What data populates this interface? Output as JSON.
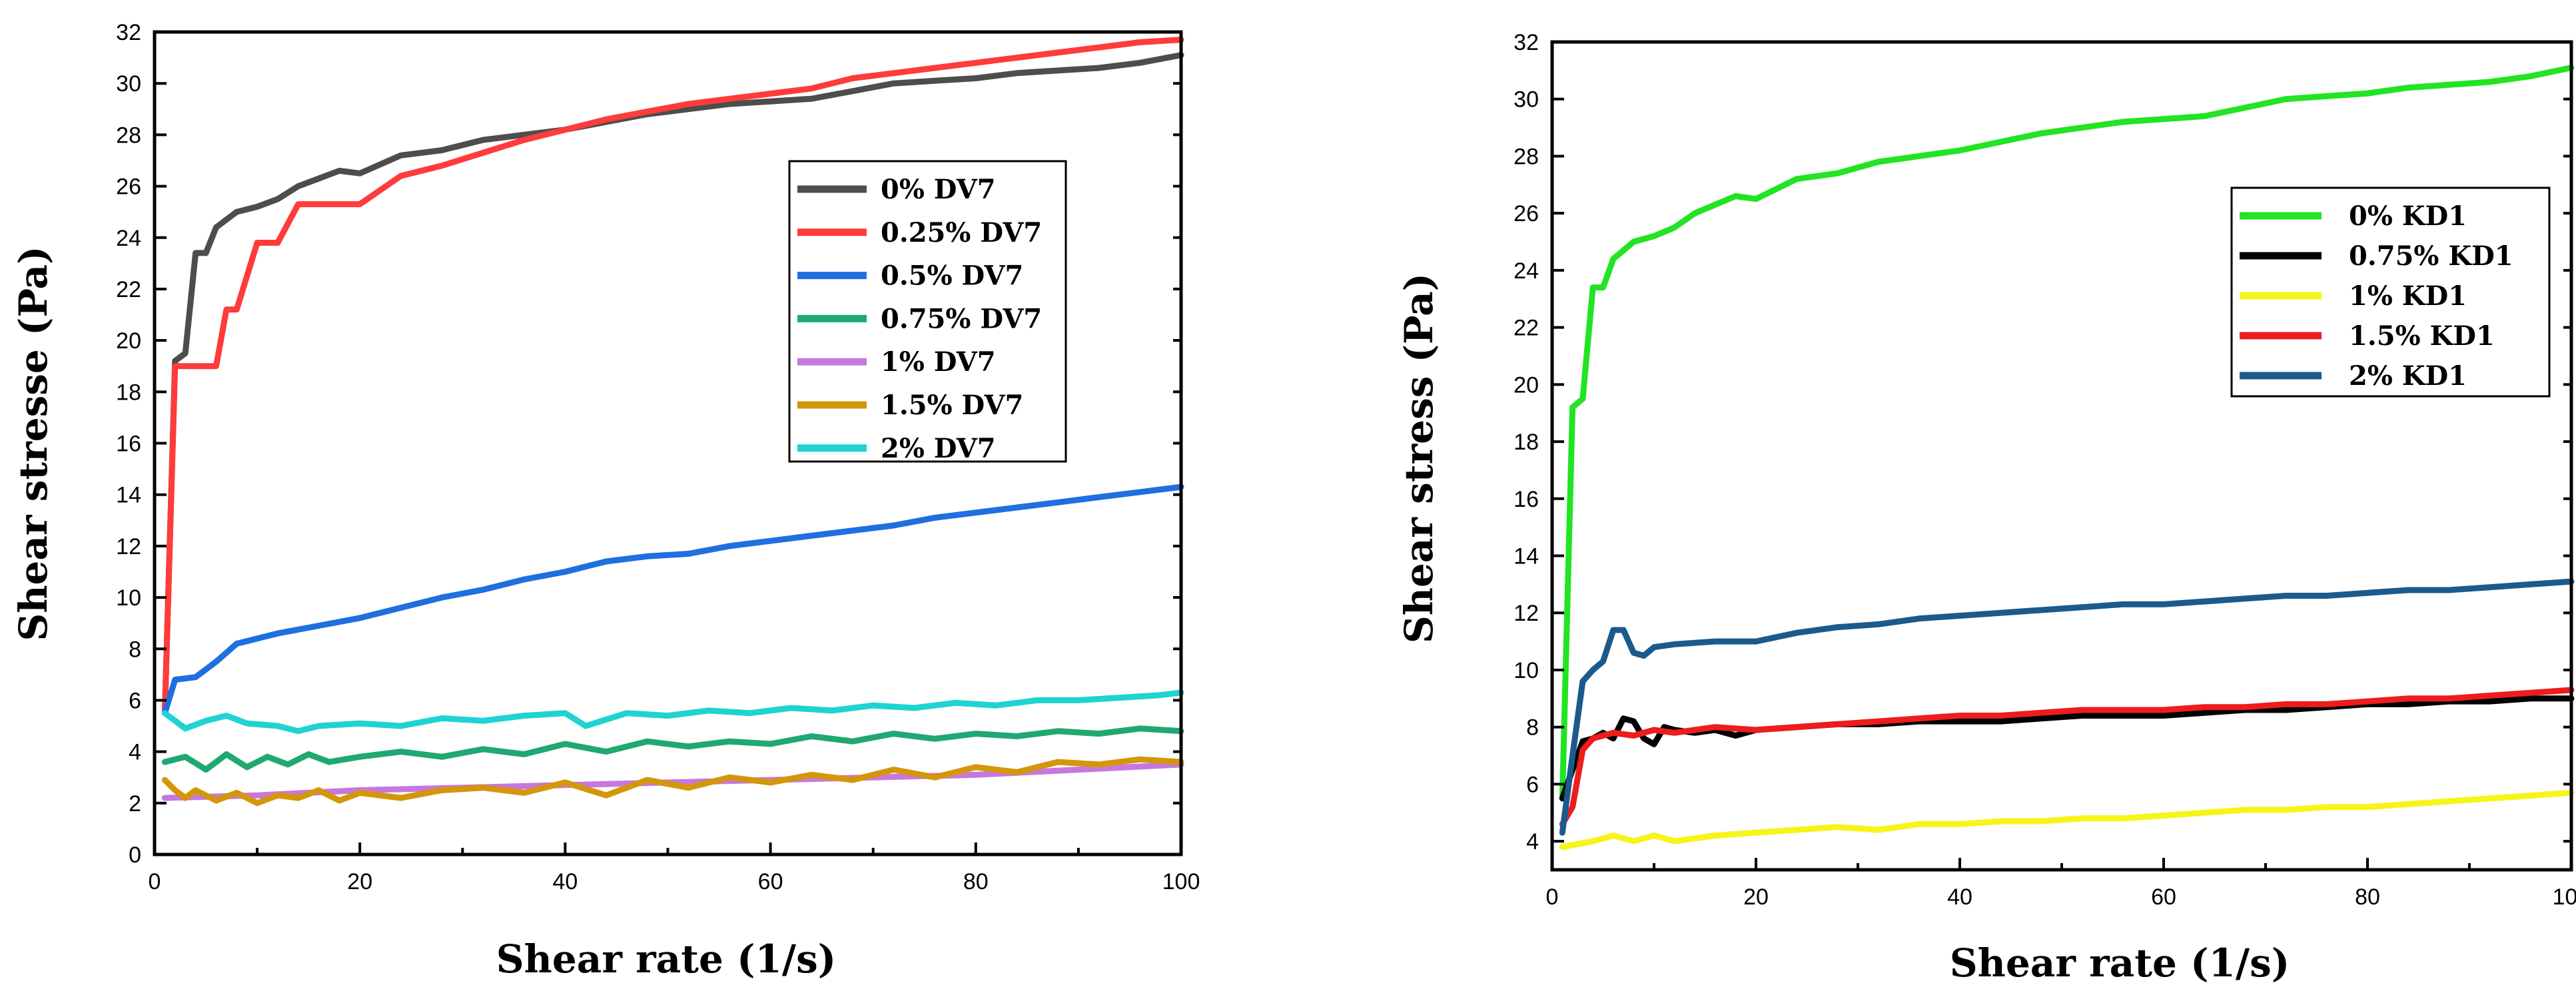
{
  "chart_data": [
    {
      "type": "line",
      "xlabel": "Shear rate (1/s)",
      "ylabel": "Shear stresse (Pa)",
      "xlim": [
        0,
        100
      ],
      "ylim": [
        0,
        32
      ],
      "xticks": [
        0,
        20,
        40,
        60,
        80,
        100
      ],
      "yticks": [
        0,
        2,
        4,
        6,
        8,
        10,
        12,
        14,
        16,
        18,
        20,
        22,
        24,
        26,
        28,
        30,
        32
      ],
      "legend_position": "center-right",
      "series": [
        {
          "name": "0% DV7",
          "color": "#4d4d4d",
          "x": [
            1,
            2,
            3,
            4,
            5,
            6,
            8,
            10,
            12,
            14,
            16,
            18,
            20,
            24,
            28,
            32,
            36,
            40,
            44,
            48,
            52,
            56,
            60,
            64,
            68,
            72,
            76,
            80,
            84,
            88,
            92,
            96,
            100
          ],
          "y": [
            5.5,
            19.2,
            19.5,
            23.4,
            23.4,
            24.4,
            25,
            25.2,
            25.5,
            26,
            26.3,
            26.6,
            26.5,
            27.2,
            27.4,
            27.8,
            28,
            28.2,
            28.5,
            28.8,
            29,
            29.2,
            29.3,
            29.4,
            29.7,
            30,
            30.1,
            30.2,
            30.4,
            30.5,
            30.6,
            30.8,
            31.1
          ]
        },
        {
          "name": "0.25% DV7",
          "color": "#ff3b3b",
          "x": [
            1,
            2,
            3,
            4,
            5,
            6,
            7,
            8,
            9,
            10,
            12,
            14,
            16,
            18,
            20,
            24,
            28,
            32,
            36,
            40,
            44,
            48,
            52,
            56,
            60,
            64,
            68,
            72,
            76,
            80,
            84,
            88,
            92,
            96,
            100
          ],
          "y": [
            5.5,
            19,
            19,
            19,
            19,
            19,
            21.2,
            21.2,
            22.5,
            23.8,
            23.8,
            25.3,
            25.3,
            25.3,
            25.3,
            26.4,
            26.8,
            27.3,
            27.8,
            28.2,
            28.6,
            28.9,
            29.2,
            29.4,
            29.6,
            29.8,
            30.2,
            30.4,
            30.6,
            30.8,
            31,
            31.2,
            31.4,
            31.6,
            31.7
          ]
        },
        {
          "name": "0.5% DV7",
          "color": "#1f6fe0",
          "x": [
            1,
            2,
            4,
            6,
            8,
            10,
            12,
            16,
            20,
            24,
            28,
            32,
            36,
            40,
            44,
            48,
            52,
            56,
            60,
            64,
            68,
            72,
            76,
            80,
            84,
            88,
            92,
            96,
            100
          ],
          "y": [
            5.5,
            6.8,
            6.9,
            7.5,
            8.2,
            8.4,
            8.6,
            8.9,
            9.2,
            9.6,
            10,
            10.3,
            10.7,
            11,
            11.4,
            11.6,
            11.7,
            12,
            12.2,
            12.4,
            12.6,
            12.8,
            13.1,
            13.3,
            13.5,
            13.7,
            13.9,
            14.1,
            14.3
          ]
        },
        {
          "name": "0.75% DV7",
          "color": "#1fa872",
          "x": [
            1,
            3,
            5,
            7,
            9,
            11,
            13,
            15,
            17,
            20,
            24,
            28,
            32,
            36,
            40,
            44,
            48,
            52,
            56,
            60,
            64,
            68,
            72,
            76,
            80,
            84,
            88,
            92,
            96,
            100
          ],
          "y": [
            3.6,
            3.8,
            3.3,
            3.9,
            3.4,
            3.8,
            3.5,
            3.9,
            3.6,
            3.8,
            4.0,
            3.8,
            4.1,
            3.9,
            4.3,
            4.0,
            4.4,
            4.2,
            4.4,
            4.3,
            4.6,
            4.4,
            4.7,
            4.5,
            4.7,
            4.6,
            4.8,
            4.7,
            4.9,
            4.8
          ]
        },
        {
          "name": "1% DV7",
          "color": "#c678dd",
          "x": [
            1,
            10,
            20,
            30,
            40,
            50,
            60,
            70,
            80,
            90,
            100
          ],
          "y": [
            2.2,
            2.3,
            2.5,
            2.6,
            2.7,
            2.8,
            2.9,
            3.0,
            3.1,
            3.3,
            3.5
          ]
        },
        {
          "name": "1.5% DV7",
          "color": "#d4960a",
          "x": [
            1,
            2,
            3,
            4,
            6,
            8,
            10,
            12,
            14,
            16,
            18,
            20,
            24,
            28,
            32,
            36,
            40,
            44,
            48,
            52,
            56,
            60,
            64,
            68,
            72,
            76,
            80,
            84,
            88,
            92,
            96,
            100
          ],
          "y": [
            2.9,
            2.5,
            2.2,
            2.5,
            2.1,
            2.4,
            2.0,
            2.3,
            2.2,
            2.5,
            2.1,
            2.4,
            2.2,
            2.5,
            2.6,
            2.4,
            2.8,
            2.3,
            2.9,
            2.6,
            3.0,
            2.8,
            3.1,
            2.9,
            3.3,
            3.0,
            3.4,
            3.2,
            3.6,
            3.5,
            3.7,
            3.6
          ]
        },
        {
          "name": "2% DV7",
          "color": "#1fd3d3",
          "x": [
            1,
            3,
            5,
            7,
            9,
            12,
            14,
            16,
            20,
            24,
            28,
            32,
            36,
            40,
            42,
            46,
            50,
            54,
            58,
            62,
            66,
            70,
            74,
            78,
            82,
            86,
            90,
            94,
            98,
            100
          ],
          "y": [
            5.5,
            4.9,
            5.2,
            5.4,
            5.1,
            5.0,
            4.8,
            5.0,
            5.1,
            5.0,
            5.3,
            5.2,
            5.4,
            5.5,
            5.0,
            5.5,
            5.4,
            5.6,
            5.5,
            5.7,
            5.6,
            5.8,
            5.7,
            5.9,
            5.8,
            6.0,
            6.0,
            6.1,
            6.2,
            6.3
          ]
        }
      ]
    },
    {
      "type": "line",
      "xlabel": "Shear rate (1/s)",
      "ylabel": "Shear stress (Pa)",
      "xlim": [
        0,
        100
      ],
      "ylim": [
        3,
        32
      ],
      "xticks": [
        0,
        20,
        40,
        60,
        80,
        100
      ],
      "yticks": [
        4,
        6,
        8,
        10,
        12,
        14,
        16,
        18,
        20,
        22,
        24,
        26,
        28,
        30,
        32
      ],
      "legend_position": "top-right",
      "series": [
        {
          "name": "0% KD1",
          "color": "#22e422",
          "x": [
            1,
            2,
            3,
            4,
            5,
            6,
            8,
            10,
            12,
            14,
            16,
            18,
            20,
            24,
            28,
            32,
            36,
            40,
            44,
            48,
            52,
            56,
            60,
            64,
            68,
            72,
            76,
            80,
            84,
            88,
            92,
            96,
            100
          ],
          "y": [
            5.5,
            19.2,
            19.5,
            23.4,
            23.4,
            24.4,
            25,
            25.2,
            25.5,
            26,
            26.3,
            26.6,
            26.5,
            27.2,
            27.4,
            27.8,
            28,
            28.2,
            28.5,
            28.8,
            29,
            29.2,
            29.3,
            29.4,
            29.7,
            30,
            30.1,
            30.2,
            30.4,
            30.5,
            30.6,
            30.8,
            31.1
          ]
        },
        {
          "name": "0.75% KD1",
          "color": "#000000",
          "x": [
            1,
            2,
            3,
            4,
            5,
            6,
            7,
            8,
            9,
            10,
            11,
            12,
            14,
            16,
            18,
            20,
            24,
            28,
            32,
            36,
            40,
            44,
            48,
            52,
            56,
            60,
            64,
            68,
            72,
            76,
            80,
            84,
            88,
            92,
            96,
            100
          ],
          "y": [
            5.5,
            6.5,
            7.5,
            7.6,
            7.8,
            7.6,
            8.3,
            8.2,
            7.6,
            7.4,
            8.0,
            7.9,
            7.8,
            7.9,
            7.7,
            7.9,
            8.0,
            8.1,
            8.1,
            8.2,
            8.2,
            8.2,
            8.3,
            8.4,
            8.4,
            8.4,
            8.5,
            8.6,
            8.6,
            8.7,
            8.8,
            8.8,
            8.9,
            8.9,
            9.0,
            9.0
          ]
        },
        {
          "name": "1% KD1",
          "color": "#f5f51a",
          "x": [
            1,
            4,
            6,
            8,
            10,
            12,
            16,
            20,
            24,
            28,
            32,
            36,
            40,
            44,
            48,
            52,
            56,
            60,
            64,
            68,
            72,
            76,
            80,
            84,
            88,
            92,
            96,
            100
          ],
          "y": [
            3.8,
            4.0,
            4.2,
            4.0,
            4.2,
            4.0,
            4.2,
            4.3,
            4.4,
            4.5,
            4.4,
            4.6,
            4.6,
            4.7,
            4.7,
            4.8,
            4.8,
            4.9,
            5.0,
            5.1,
            5.1,
            5.2,
            5.2,
            5.3,
            5.4,
            5.5,
            5.6,
            5.7
          ]
        },
        {
          "name": "1.5% KD1",
          "color": "#ee1c1c",
          "x": [
            1,
            2,
            3,
            4,
            6,
            8,
            10,
            12,
            16,
            20,
            24,
            28,
            32,
            36,
            40,
            44,
            48,
            52,
            56,
            60,
            64,
            68,
            72,
            76,
            80,
            84,
            88,
            92,
            96,
            100
          ],
          "y": [
            4.6,
            5.2,
            7.2,
            7.6,
            7.8,
            7.7,
            7.9,
            7.8,
            8.0,
            7.9,
            8.0,
            8.1,
            8.2,
            8.3,
            8.4,
            8.4,
            8.5,
            8.6,
            8.6,
            8.6,
            8.7,
            8.7,
            8.8,
            8.8,
            8.9,
            9.0,
            9.0,
            9.1,
            9.2,
            9.3
          ]
        },
        {
          "name": "2% KD1",
          "color": "#1b5a8c",
          "x": [
            1,
            2,
            3,
            4,
            5,
            6,
            7,
            8,
            9,
            10,
            12,
            16,
            20,
            24,
            28,
            32,
            36,
            40,
            44,
            48,
            52,
            56,
            60,
            64,
            68,
            72,
            76,
            80,
            84,
            88,
            92,
            96,
            100
          ],
          "y": [
            4.3,
            7.0,
            9.6,
            10.0,
            10.3,
            11.4,
            11.4,
            10.6,
            10.5,
            10.8,
            10.9,
            11.0,
            11.0,
            11.3,
            11.5,
            11.6,
            11.8,
            11.9,
            12.0,
            12.1,
            12.2,
            12.3,
            12.3,
            12.4,
            12.5,
            12.6,
            12.6,
            12.7,
            12.8,
            12.8,
            12.9,
            13.0,
            13.1
          ]
        }
      ]
    }
  ]
}
